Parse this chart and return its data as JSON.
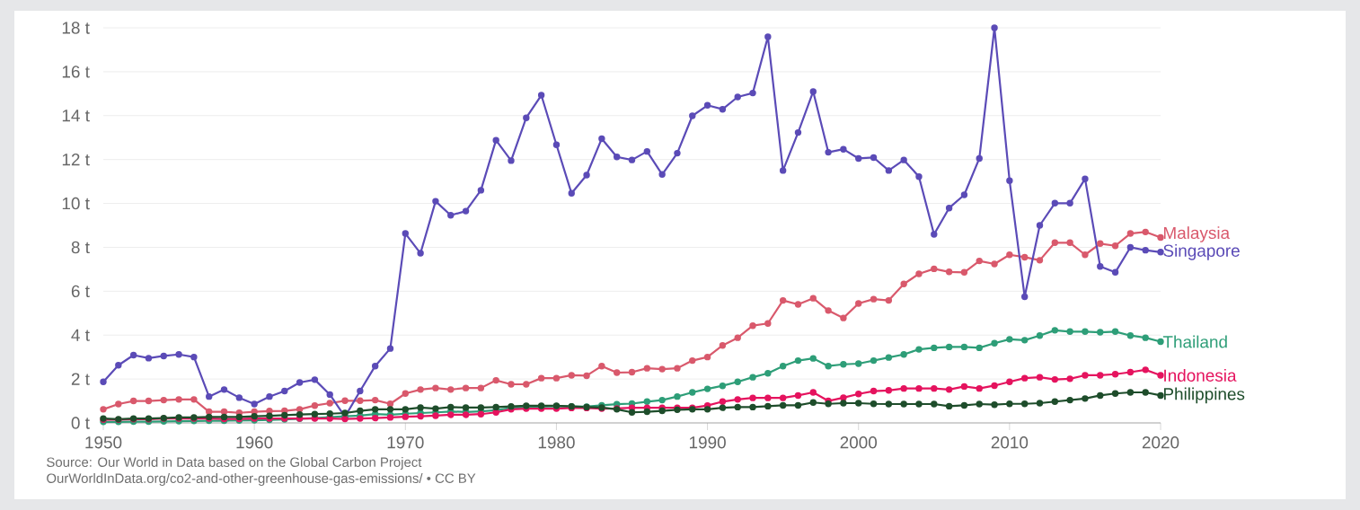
{
  "chart_data": {
    "type": "line",
    "x": [
      1950,
      1951,
      1952,
      1953,
      1954,
      1955,
      1956,
      1957,
      1958,
      1959,
      1960,
      1961,
      1962,
      1963,
      1964,
      1965,
      1966,
      1967,
      1968,
      1969,
      1970,
      1971,
      1972,
      1973,
      1974,
      1975,
      1976,
      1977,
      1978,
      1979,
      1980,
      1981,
      1982,
      1983,
      1984,
      1985,
      1986,
      1987,
      1988,
      1989,
      1990,
      1991,
      1992,
      1993,
      1994,
      1995,
      1996,
      1997,
      1998,
      1999,
      2000,
      2001,
      2002,
      2003,
      2004,
      2005,
      2006,
      2007,
      2008,
      2009,
      2010,
      2011,
      2012,
      2013,
      2014,
      2015,
      2016,
      2017,
      2018,
      2019,
      2020
    ],
    "series": [
      {
        "name": "Malaysia",
        "color": "#d9596c",
        "values": [
          0.62,
          0.86,
          1.0,
          1.0,
          1.04,
          1.07,
          1.07,
          0.51,
          0.51,
          0.46,
          0.51,
          0.54,
          0.55,
          0.62,
          0.79,
          0.9,
          1.01,
          1.01,
          1.04,
          0.87,
          1.34,
          1.52,
          1.59,
          1.52,
          1.59,
          1.59,
          1.94,
          1.76,
          1.76,
          2.04,
          2.04,
          2.17,
          2.15,
          2.59,
          2.29,
          2.31,
          2.49,
          2.45,
          2.49,
          2.84,
          3.0,
          3.53,
          3.88,
          4.43,
          4.53,
          5.58,
          5.4,
          5.68,
          5.12,
          4.78,
          5.44,
          5.64,
          5.58,
          6.33,
          6.79,
          7.02,
          6.88,
          6.86,
          7.38,
          7.24,
          7.66,
          7.55,
          7.41,
          8.21,
          8.21,
          7.66,
          8.17,
          8.07,
          8.63,
          8.7,
          8.45
        ]
      },
      {
        "name": "Singapore",
        "color": "#5b4bb7",
        "values": [
          1.87,
          2.63,
          3.09,
          2.95,
          3.05,
          3.12,
          3.0,
          1.2,
          1.52,
          1.15,
          0.86,
          1.2,
          1.45,
          1.84,
          1.97,
          1.29,
          0.28,
          1.45,
          2.59,
          3.39,
          8.63,
          7.73,
          10.1,
          9.46,
          9.65,
          10.6,
          12.88,
          11.95,
          13.9,
          14.93,
          12.67,
          10.46,
          11.29,
          12.95,
          12.12,
          11.98,
          12.37,
          11.32,
          12.29,
          13.99,
          14.47,
          14.29,
          14.85,
          15.03,
          17.59,
          11.5,
          13.23,
          15.1,
          12.33,
          12.47,
          12.05,
          12.09,
          11.5,
          11.98,
          11.22,
          8.59,
          9.79,
          10.39,
          12.05,
          18.0,
          11.04,
          5.75,
          9.0,
          10.01,
          10.01,
          11.12,
          7.13,
          6.86,
          8.0,
          7.87,
          7.78
        ]
      },
      {
        "name": "Thailand",
        "color": "#2e9e78",
        "values": [
          0.05,
          0.05,
          0.06,
          0.06,
          0.07,
          0.08,
          0.09,
          0.1,
          0.1,
          0.11,
          0.12,
          0.14,
          0.16,
          0.19,
          0.22,
          0.26,
          0.3,
          0.33,
          0.4,
          0.37,
          0.42,
          0.45,
          0.48,
          0.52,
          0.5,
          0.53,
          0.58,
          0.68,
          0.72,
          0.74,
          0.76,
          0.75,
          0.74,
          0.8,
          0.85,
          0.88,
          0.97,
          1.04,
          1.2,
          1.39,
          1.55,
          1.69,
          1.87,
          2.08,
          2.26,
          2.59,
          2.84,
          2.94,
          2.59,
          2.67,
          2.7,
          2.84,
          2.98,
          3.12,
          3.35,
          3.42,
          3.46,
          3.46,
          3.42,
          3.63,
          3.81,
          3.77,
          3.98,
          4.22,
          4.16,
          4.16,
          4.13,
          4.16,
          3.98,
          3.88,
          3.7
        ]
      },
      {
        "name": "Indonesia",
        "color": "#e5135e",
        "values": [
          0.15,
          0.15,
          0.17,
          0.17,
          0.2,
          0.2,
          0.2,
          0.2,
          0.18,
          0.18,
          0.2,
          0.2,
          0.2,
          0.2,
          0.2,
          0.2,
          0.18,
          0.2,
          0.22,
          0.25,
          0.28,
          0.3,
          0.33,
          0.37,
          0.37,
          0.4,
          0.48,
          0.62,
          0.65,
          0.65,
          0.65,
          0.68,
          0.68,
          0.65,
          0.66,
          0.69,
          0.69,
          0.69,
          0.69,
          0.69,
          0.79,
          0.97,
          1.07,
          1.14,
          1.14,
          1.14,
          1.25,
          1.39,
          1.0,
          1.15,
          1.32,
          1.45,
          1.48,
          1.57,
          1.57,
          1.57,
          1.52,
          1.66,
          1.57,
          1.7,
          1.87,
          2.04,
          2.08,
          1.98,
          2.01,
          2.17,
          2.17,
          2.22,
          2.31,
          2.42,
          2.17
        ]
      },
      {
        "name": "Philippines",
        "color": "#1e4d2b",
        "values": [
          0.2,
          0.17,
          0.2,
          0.2,
          0.22,
          0.25,
          0.25,
          0.27,
          0.27,
          0.27,
          0.3,
          0.32,
          0.35,
          0.38,
          0.4,
          0.42,
          0.45,
          0.55,
          0.62,
          0.62,
          0.62,
          0.7,
          0.65,
          0.72,
          0.7,
          0.7,
          0.72,
          0.75,
          0.78,
          0.78,
          0.78,
          0.75,
          0.72,
          0.7,
          0.62,
          0.48,
          0.51,
          0.55,
          0.6,
          0.62,
          0.62,
          0.69,
          0.72,
          0.72,
          0.76,
          0.8,
          0.8,
          0.93,
          0.87,
          0.9,
          0.9,
          0.87,
          0.86,
          0.86,
          0.86,
          0.86,
          0.76,
          0.8,
          0.86,
          0.83,
          0.87,
          0.87,
          0.9,
          0.97,
          1.04,
          1.11,
          1.25,
          1.34,
          1.39,
          1.39,
          1.25
        ]
      }
    ],
    "xlim": [
      1950,
      2020
    ],
    "xticks": [
      1950,
      1960,
      1970,
      1980,
      1990,
      2000,
      2010,
      2020
    ],
    "ylim": [
      0,
      18
    ],
    "yticks": [
      {
        "value": 0,
        "label": "0 t"
      },
      {
        "value": 2,
        "label": "2 t"
      },
      {
        "value": 4,
        "label": "4 t"
      },
      {
        "value": 6,
        "label": "6 t"
      },
      {
        "value": 8,
        "label": "8 t"
      },
      {
        "value": 10,
        "label": "10 t"
      },
      {
        "value": 12,
        "label": "12 t"
      },
      {
        "value": 14,
        "label": "14 t"
      },
      {
        "value": 16,
        "label": "16 t"
      },
      {
        "value": 18,
        "label": "18 t"
      }
    ],
    "grid": "y",
    "marker": "circle",
    "line_style": "solid",
    "annotations": [
      "Source: Our World in Data based on the Global Carbon Project",
      "OurWorldInData.org/co2-and-other-greenhouse-gas-emissions/ • CC BY"
    ]
  }
}
